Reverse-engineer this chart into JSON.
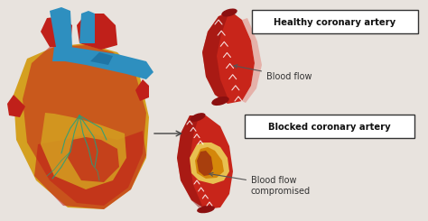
{
  "bg_color": "#e8e3de",
  "healthy_label": "Healthy coronary artery",
  "blocked_label": "Blocked coronary artery",
  "blood_flow_label": "Blood flow",
  "compromised_label": "Blood flow\ncompromised",
  "artery_red": "#c8251a",
  "artery_dark_red": "#8b1010",
  "artery_shadow": "#a01515",
  "artery_light": "#e04030",
  "heart_gold": "#d4a020",
  "heart_orange": "#cc7722",
  "heart_red": "#c0201a",
  "heart_dark_red": "#8b1010",
  "blue_vessel": "#2e8fbf",
  "blue_dark": "#1a6a9a",
  "label_box_color": "#ffffff",
  "label_text_color": "#111111",
  "annotation_color": "#555555",
  "dotted_color": "#ffffff",
  "blockage_yellow": "#e8c050",
  "blockage_orange": "#d4870a"
}
